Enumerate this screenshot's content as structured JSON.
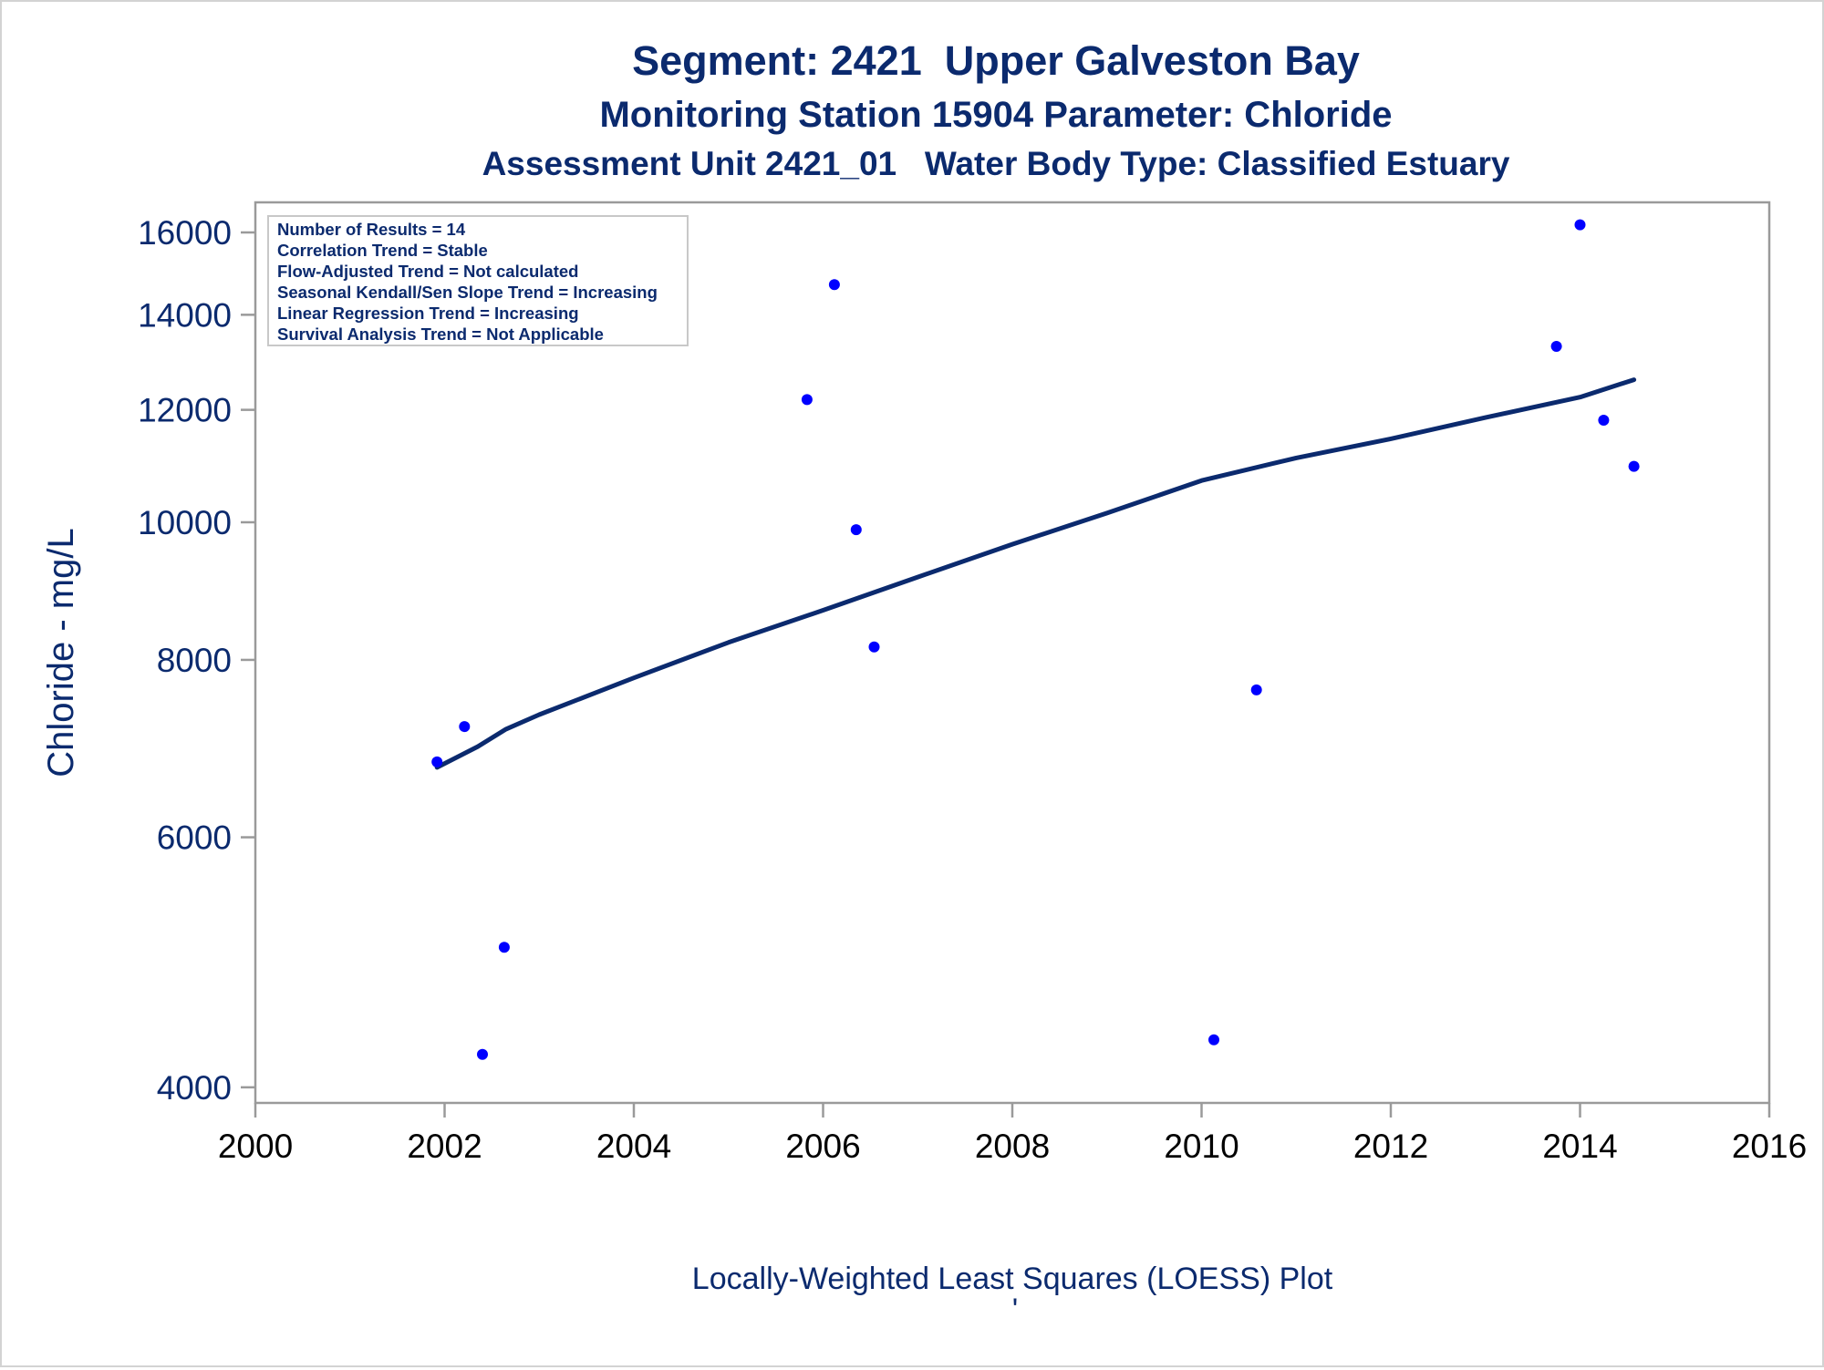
{
  "chart_data": {
    "type": "scatter",
    "title": "Segment: 2421  Upper Galveston Bay",
    "subtitle": "Monitoring Station 15904 Parameter: Chloride",
    "subtitle2": "Assessment Unit 2421_01   Water Body Type: Classified Estuary",
    "ylabel": "Chloride - mg/L",
    "xlabel": "Locally-Weighted Least Squares (LOESS) Plot",
    "footnote": "'",
    "y_scale": "log",
    "xlim": [
      2000,
      2016
    ],
    "ylim": [
      3900,
      16800
    ],
    "x_ticks": [
      2000,
      2002,
      2004,
      2006,
      2008,
      2010,
      2012,
      2014,
      2016
    ],
    "y_ticks": [
      4000,
      6000,
      8000,
      10000,
      12000,
      14000,
      16000
    ],
    "grid": false,
    "legend_position": "top-left",
    "annotation_lines": [
      "Number of Results = 14",
      "Correlation Trend = Stable",
      "Flow-Adjusted Trend = Not calculated",
      "Seasonal Kendall/Sen Slope Trend = Increasing",
      "Linear Regression Trend = Increasing",
      "Survival Analysis Trend = Not Applicable"
    ],
    "series": [
      {
        "type": "scatter",
        "color": "#0000ff",
        "points": [
          {
            "x": 2001.92,
            "y": 6780
          },
          {
            "x": 2002.21,
            "y": 7180
          },
          {
            "x": 2002.4,
            "y": 4220
          },
          {
            "x": 2002.63,
            "y": 5020
          },
          {
            "x": 2005.83,
            "y": 12200
          },
          {
            "x": 2006.12,
            "y": 14700
          },
          {
            "x": 2006.35,
            "y": 9880
          },
          {
            "x": 2006.54,
            "y": 8170
          },
          {
            "x": 2010.13,
            "y": 4320
          },
          {
            "x": 2010.58,
            "y": 7620
          },
          {
            "x": 2013.75,
            "y": 13300
          },
          {
            "x": 2014.0,
            "y": 16200
          },
          {
            "x": 2014.25,
            "y": 11800
          },
          {
            "x": 2014.57,
            "y": 10950
          }
        ]
      },
      {
        "type": "line",
        "color": "#0b2a6e",
        "points": [
          {
            "x": 2001.92,
            "y": 6720
          },
          {
            "x": 2002.35,
            "y": 6950
          },
          {
            "x": 2002.65,
            "y": 7150
          },
          {
            "x": 2003.0,
            "y": 7320
          },
          {
            "x": 2004.0,
            "y": 7770
          },
          {
            "x": 2005.0,
            "y": 8230
          },
          {
            "x": 2006.0,
            "y": 8670
          },
          {
            "x": 2007.0,
            "y": 9150
          },
          {
            "x": 2008.0,
            "y": 9650
          },
          {
            "x": 2009.0,
            "y": 10150
          },
          {
            "x": 2010.0,
            "y": 10700
          },
          {
            "x": 2011.0,
            "y": 11100
          },
          {
            "x": 2012.0,
            "y": 11450
          },
          {
            "x": 2013.0,
            "y": 11850
          },
          {
            "x": 2014.0,
            "y": 12250
          },
          {
            "x": 2014.57,
            "y": 12600
          }
        ]
      }
    ]
  }
}
